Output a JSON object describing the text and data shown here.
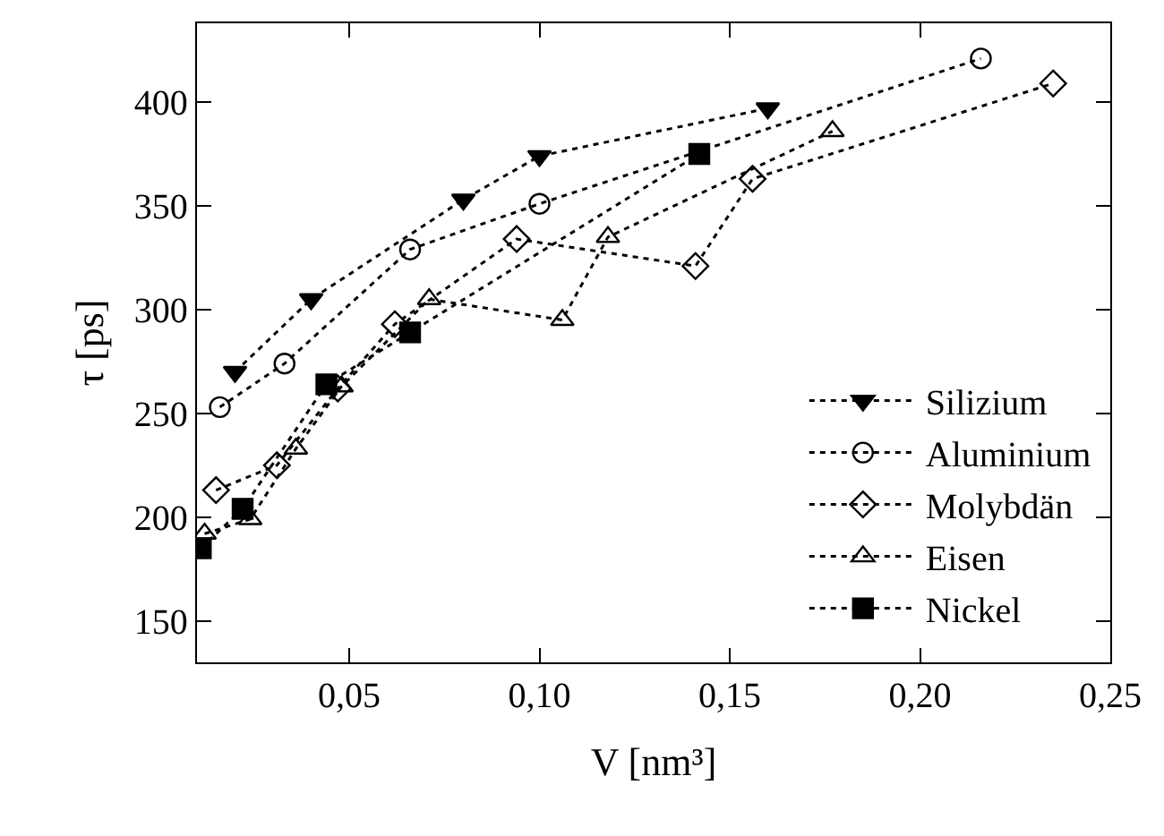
{
  "chart_data": {
    "type": "line",
    "xlabel": "V [nm³]",
    "ylabel": "τ [ps]",
    "xlim": [
      0.01,
      0.25
    ],
    "ylim": [
      130,
      438
    ],
    "xticks": [
      {
        "value": 0.05,
        "label": "0,05"
      },
      {
        "value": 0.1,
        "label": "0,10"
      },
      {
        "value": 0.15,
        "label": "0,15"
      },
      {
        "value": 0.2,
        "label": "0,20"
      },
      {
        "value": 0.25,
        "label": "0,25"
      }
    ],
    "yticks": [
      150,
      200,
      250,
      300,
      350,
      400
    ],
    "legend": "bottom right",
    "line_style": "dotted",
    "series": [
      {
        "name": "Silizium",
        "color": "#000000",
        "marker": "triangle-down",
        "x": [
          0.02,
          0.04,
          0.08,
          0.1,
          0.16
        ],
        "values": [
          270,
          305,
          353,
          374,
          397
        ]
      },
      {
        "name": "Aluminium",
        "color": "#000000",
        "marker": "circle-open",
        "x": [
          0.016,
          0.033,
          0.066,
          0.1,
          0.216
        ],
        "values": [
          253,
          274,
          329,
          351,
          421
        ]
      },
      {
        "name": "Molybdän",
        "color": "#000000",
        "marker": "diamond-open",
        "x": [
          0.015,
          0.031,
          0.047,
          0.062,
          0.094,
          0.141,
          0.156,
          0.235
        ],
        "values": [
          213,
          225,
          262,
          293,
          334,
          321,
          363,
          409
        ]
      },
      {
        "name": "Eisen",
        "color": "#000000",
        "marker": "triangle-up-open",
        "x": [
          0.012,
          0.024,
          0.036,
          0.048,
          0.071,
          0.106,
          0.118,
          0.177
        ],
        "values": [
          192,
          199,
          233,
          263,
          305,
          295,
          335,
          386
        ]
      },
      {
        "name": "Nickel",
        "color": "#000000",
        "marker": "square",
        "x": [
          0.011,
          0.022,
          0.044,
          0.066,
          0.142
        ],
        "values": [
          185,
          204,
          264,
          289,
          375
        ]
      }
    ]
  }
}
